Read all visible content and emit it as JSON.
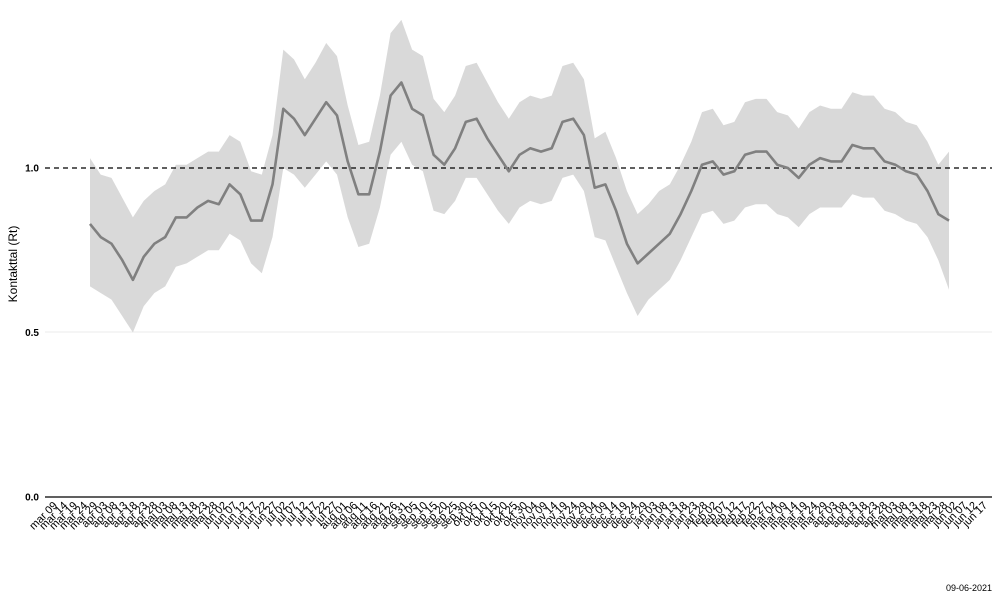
{
  "chart_data": {
    "type": "area",
    "title": "",
    "ylabel": "Kontakttal (Rt)",
    "xlabel": "",
    "ylim": [
      0,
      1.5
    ],
    "yticks": [
      "0.0",
      "0.5",
      "1.0"
    ],
    "reference_line": 1.0,
    "grid": true,
    "date_stamp": "09-06-2021",
    "xticks": [
      "mar 09",
      "mar 14",
      "mar 19",
      "mar 24",
      "mar 29",
      "apr 03",
      "apr 08",
      "apr 13",
      "apr 18",
      "apr 23",
      "apr 28",
      "maj 03",
      "maj 08",
      "maj 13",
      "maj 18",
      "maj 23",
      "maj 28",
      "jun 02",
      "jun 07",
      "jun 12",
      "jun 17",
      "jun 22",
      "jun 27",
      "jul 02",
      "jul 07",
      "jul 12",
      "jul 17",
      "jul 22",
      "jul 27",
      "aug 01",
      "aug 06",
      "aug 11",
      "aug 16",
      "aug 21",
      "aug 26",
      "aug 31",
      "sep 05",
      "sep 10",
      "sep 15",
      "sep 20",
      "sep 25",
      "sep 30",
      "okt 05",
      "okt 10",
      "okt 15",
      "okt 20",
      "okt 25",
      "okt 30",
      "nov 04",
      "nov 09",
      "nov 14",
      "nov 19",
      "nov 24",
      "nov 29",
      "dec 04",
      "dec 09",
      "dec 14",
      "dec 19",
      "dec 24",
      "dec 29",
      "jan 03",
      "jan 08",
      "jan 13",
      "jan 18",
      "jan 23",
      "jan 28",
      "feb 02",
      "feb 07",
      "feb 12",
      "feb 17",
      "feb 22",
      "feb 27",
      "mar 04",
      "mar 09",
      "mar 14",
      "mar 19",
      "mar 24",
      "mar 29",
      "apr 03",
      "apr 08",
      "apr 13",
      "apr 18",
      "apr 23",
      "apr 28",
      "maj 03",
      "maj 08",
      "maj 13",
      "maj 18",
      "maj 23",
      "maj 28",
      "jun 02",
      "jun 07",
      "jun 12",
      "jun 17"
    ],
    "series": [
      {
        "values": [
          0.83,
          0.79,
          0.77,
          0.72,
          0.66,
          0.73,
          0.77,
          0.79,
          0.85,
          0.85,
          0.88,
          0.9,
          0.89,
          0.95,
          0.92,
          0.84,
          0.84,
          0.95,
          1.18,
          1.15,
          1.1,
          1.15,
          1.2,
          1.16,
          1.02,
          0.92,
          0.92,
          1.05,
          1.22,
          1.26,
          1.18,
          1.16,
          1.04,
          1.01,
          1.06,
          1.14,
          1.15,
          1.09,
          1.04,
          0.99,
          1.04,
          1.06,
          1.05,
          1.06,
          1.14,
          1.15,
          1.1,
          0.94,
          0.95,
          0.87,
          0.77,
          0.71,
          0.74,
          0.77,
          0.8,
          0.86,
          0.93,
          1.01,
          1.02,
          0.98,
          0.99,
          1.04,
          1.05,
          1.05,
          1.01,
          1.0,
          0.97,
          1.01,
          1.03,
          1.02,
          1.02,
          1.07,
          1.06,
          1.06,
          1.02,
          1.01,
          0.99,
          0.98,
          0.93,
          0.86,
          0.84
        ],
        "lower": [
          0.64,
          0.62,
          0.6,
          0.55,
          0.5,
          0.58,
          0.62,
          0.64,
          0.7,
          0.71,
          0.73,
          0.75,
          0.75,
          0.8,
          0.78,
          0.71,
          0.68,
          0.79,
          1.0,
          0.98,
          0.94,
          0.98,
          1.02,
          0.98,
          0.85,
          0.76,
          0.77,
          0.88,
          1.04,
          1.08,
          1.01,
          0.99,
          0.87,
          0.86,
          0.9,
          0.97,
          0.97,
          0.92,
          0.87,
          0.83,
          0.88,
          0.9,
          0.89,
          0.9,
          0.97,
          0.98,
          0.93,
          0.79,
          0.78,
          0.7,
          0.62,
          0.55,
          0.6,
          0.63,
          0.66,
          0.72,
          0.79,
          0.86,
          0.87,
          0.83,
          0.84,
          0.88,
          0.89,
          0.89,
          0.86,
          0.85,
          0.82,
          0.86,
          0.88,
          0.88,
          0.88,
          0.92,
          0.91,
          0.91,
          0.87,
          0.86,
          0.84,
          0.83,
          0.79,
          0.72,
          0.63
        ],
        "upper": [
          1.03,
          0.98,
          0.97,
          0.91,
          0.85,
          0.9,
          0.93,
          0.95,
          1.01,
          1.01,
          1.03,
          1.05,
          1.05,
          1.1,
          1.08,
          0.99,
          0.98,
          1.1,
          1.36,
          1.33,
          1.27,
          1.32,
          1.38,
          1.34,
          1.19,
          1.07,
          1.08,
          1.22,
          1.41,
          1.45,
          1.36,
          1.34,
          1.21,
          1.17,
          1.22,
          1.31,
          1.32,
          1.26,
          1.2,
          1.15,
          1.2,
          1.22,
          1.21,
          1.22,
          1.31,
          1.32,
          1.27,
          1.09,
          1.11,
          1.03,
          0.93,
          0.86,
          0.89,
          0.93,
          0.95,
          1.01,
          1.08,
          1.17,
          1.18,
          1.13,
          1.14,
          1.2,
          1.21,
          1.21,
          1.17,
          1.16,
          1.12,
          1.17,
          1.19,
          1.18,
          1.18,
          1.23,
          1.22,
          1.22,
          1.18,
          1.17,
          1.14,
          1.13,
          1.08,
          1.01,
          1.05
        ]
      }
    ],
    "colors": {
      "band": "#d9d9d9",
      "line": "#808080",
      "ref_line": "#000000",
      "grid": "#ebebeb",
      "axis": "#000000"
    }
  }
}
